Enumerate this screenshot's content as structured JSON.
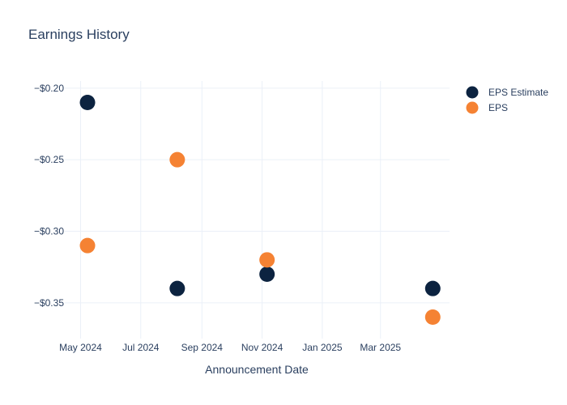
{
  "title": "Earnings History",
  "chart_data": {
    "type": "scatter",
    "title": "Earnings History",
    "xlabel": "Announcement Date",
    "ylabel": "",
    "x_ticks": [
      "May 2024",
      "Jul 2024",
      "Sep 2024",
      "Nov 2024",
      "Jan 2025",
      "Mar 2025"
    ],
    "y_ticks": [
      "−$0.20",
      "−$0.25",
      "−$0.30",
      "−$0.35"
    ],
    "ylim": [
      -0.375,
      -0.195
    ],
    "xlim": [
      "2024-04-15",
      "2025-05-10"
    ],
    "grid": true,
    "legend_position": "top-right",
    "series": [
      {
        "name": "EPS Estimate",
        "color": "#0c2340",
        "points": [
          {
            "x": "2024-05-08",
            "y": -0.21
          },
          {
            "x": "2024-08-07",
            "y": -0.34
          },
          {
            "x": "2024-11-06",
            "y": -0.33
          },
          {
            "x": "2025-04-23",
            "y": -0.34
          }
        ]
      },
      {
        "name": "EPS",
        "color": "#f58233",
        "points": [
          {
            "x": "2024-05-08",
            "y": -0.31
          },
          {
            "x": "2024-08-07",
            "y": -0.25
          },
          {
            "x": "2024-11-06",
            "y": -0.32
          },
          {
            "x": "2025-04-23",
            "y": -0.36
          }
        ]
      }
    ]
  }
}
